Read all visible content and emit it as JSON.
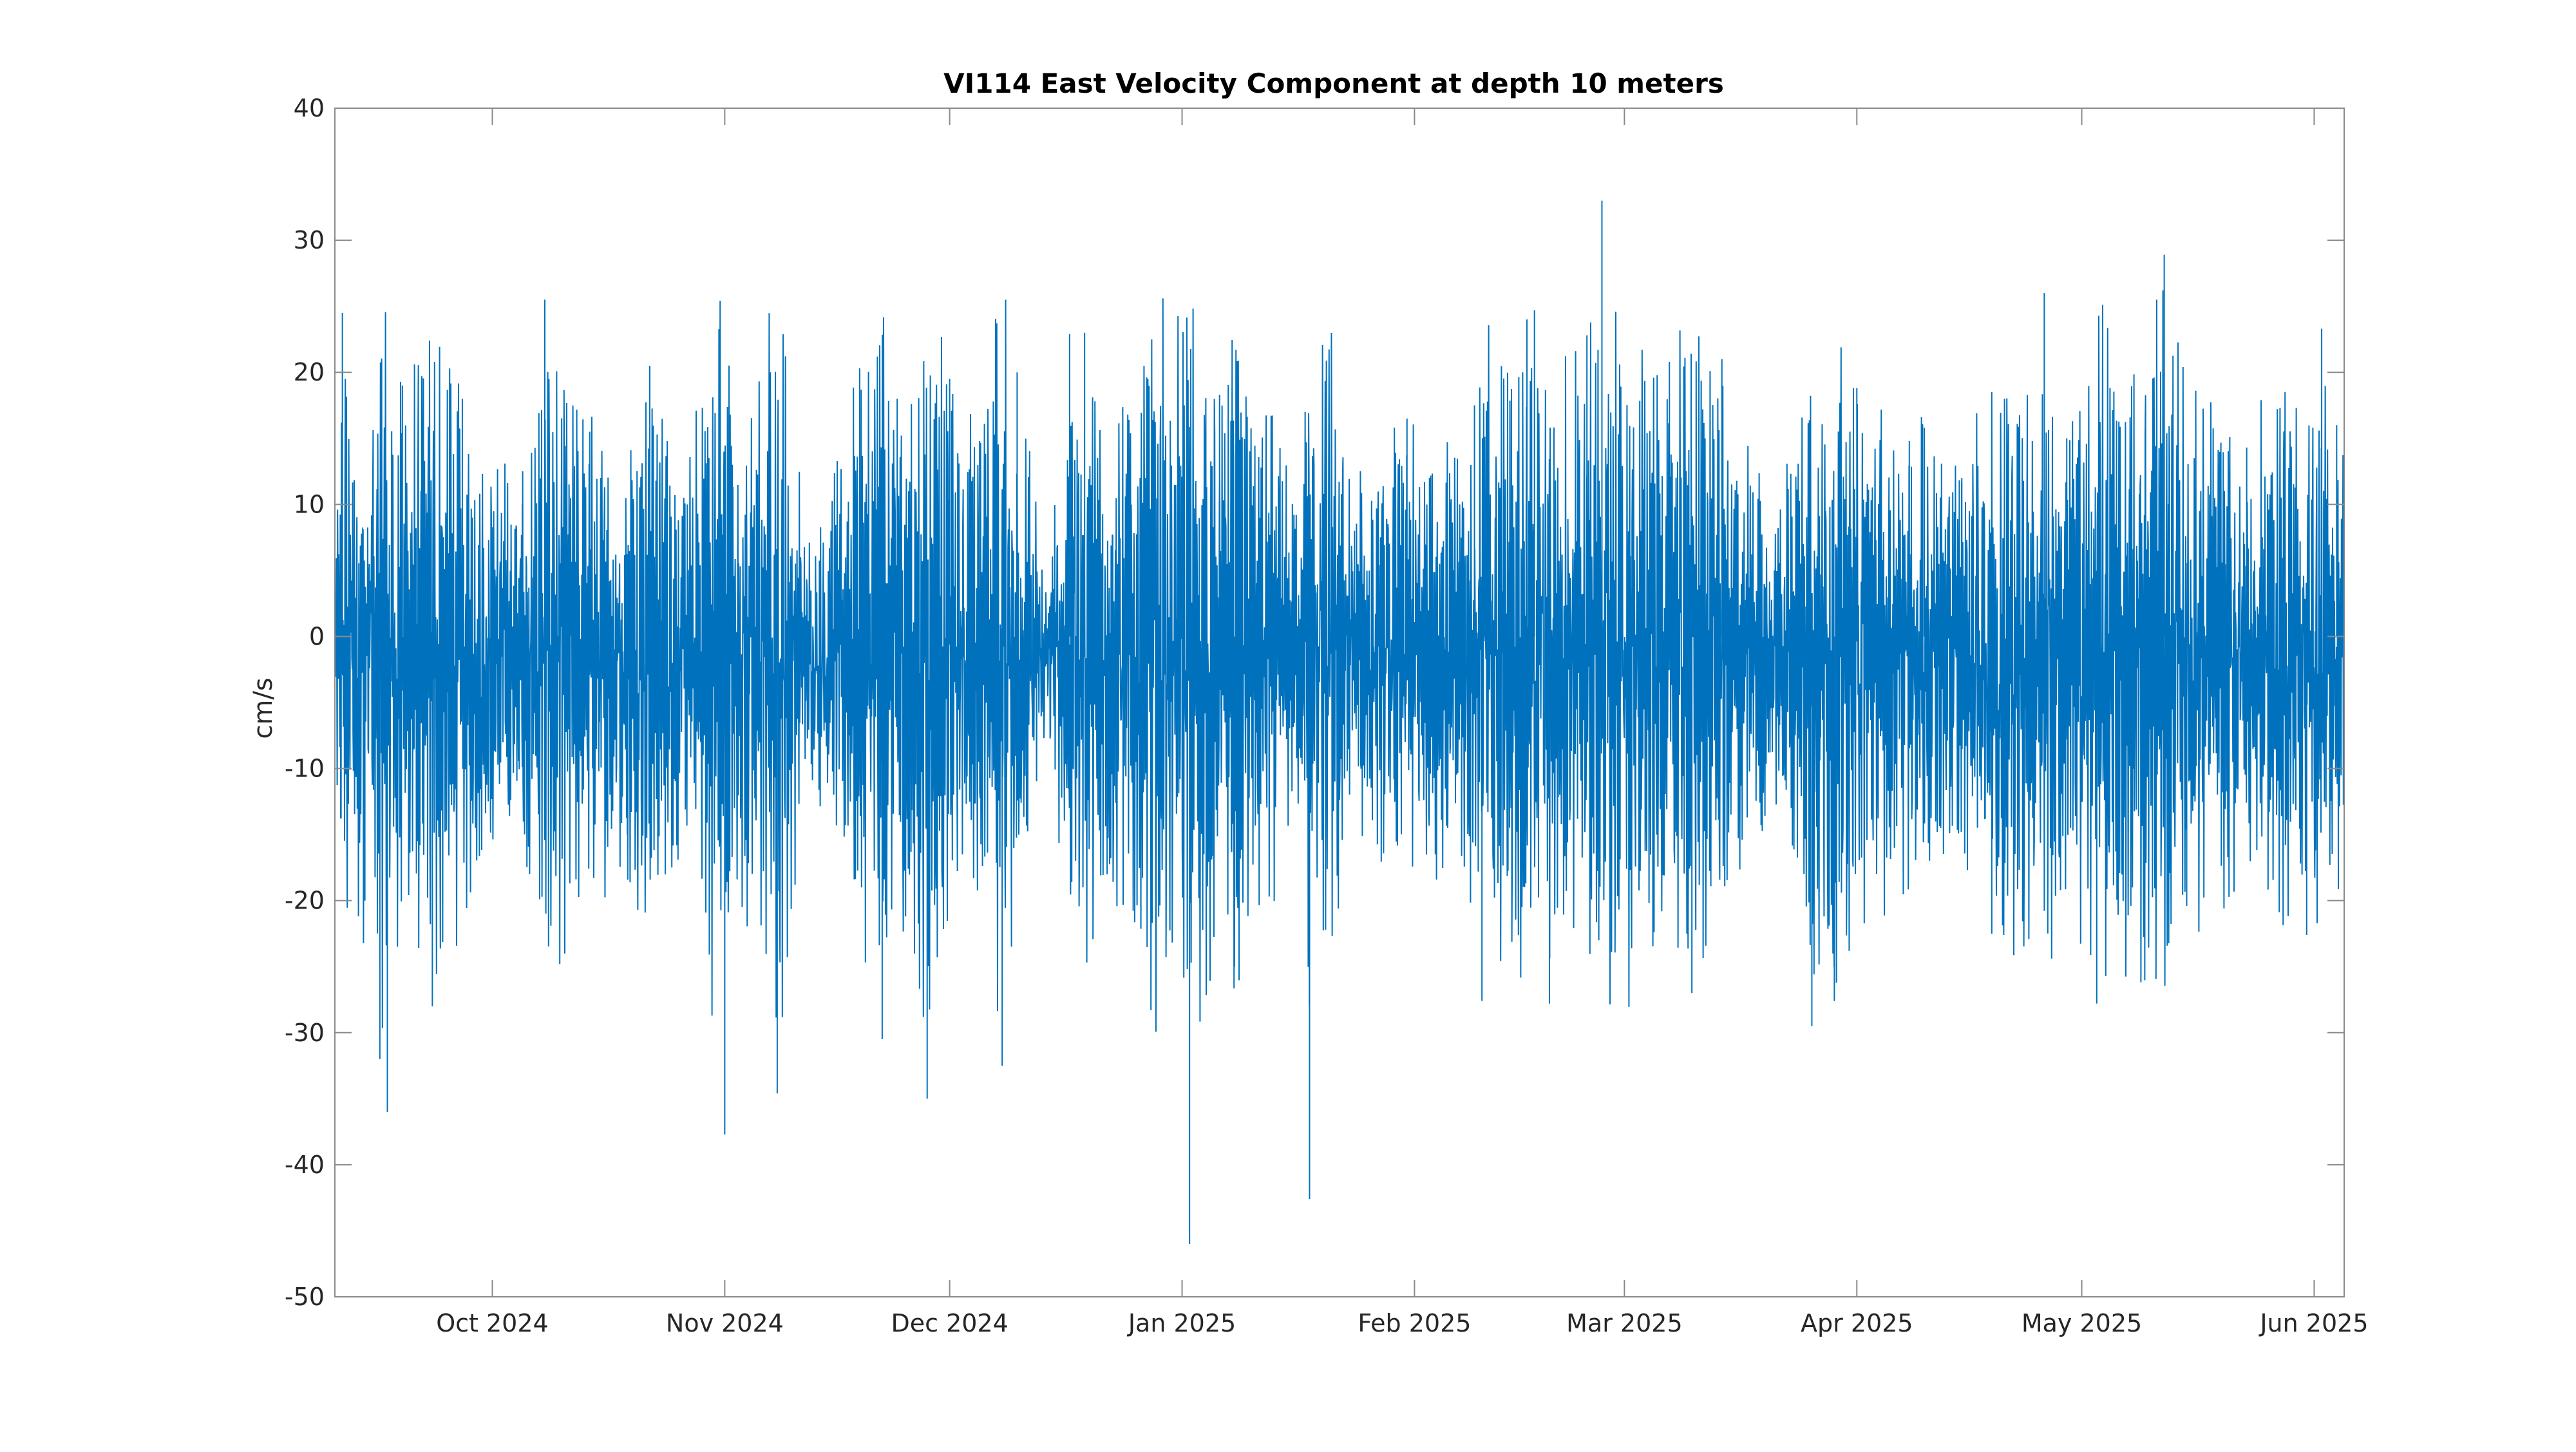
{
  "chart_data": {
    "type": "line",
    "title": "VI114 East Velocity Component at depth 10 meters",
    "xlabel": "",
    "ylabel": "cm/s",
    "ylim": [
      -50,
      40
    ],
    "yticks": [
      40,
      30,
      20,
      10,
      0,
      -10,
      -20,
      -30,
      -40,
      -50
    ],
    "ytick_labels": [
      "40",
      "30",
      "20",
      "10",
      "0",
      "-10",
      "-20",
      "-30",
      "-40",
      "-50"
    ],
    "xlim": [
      "2024-09-10",
      "2025-06-05"
    ],
    "xticks": [
      "2024-10-01",
      "2024-11-01",
      "2024-12-01",
      "2025-01-01",
      "2025-02-01",
      "2025-03-01",
      "2025-04-01",
      "2025-05-01",
      "2025-06-01"
    ],
    "xtick_labels": [
      "Oct 2024",
      "Nov 2024",
      "Dec 2024",
      "Jan 2025",
      "Feb 2025",
      "Mar 2025",
      "Apr 2025",
      "May 2025",
      "Jun 2025"
    ],
    "grid": false,
    "legend": "none",
    "series": [
      {
        "color": "#0072BD",
        "x": [
          "2024-09-10",
          "2024-09-11",
          "2024-09-14",
          "2024-09-16",
          "2024-09-17",
          "2024-09-19",
          "2024-09-23",
          "2024-09-27",
          "2024-10-05",
          "2024-10-08",
          "2024-10-14",
          "2024-10-19",
          "2024-10-22",
          "2024-10-27",
          "2024-11-01",
          "2024-11-02",
          "2024-11-08",
          "2024-11-12",
          "2024-11-19",
          "2024-11-22",
          "2024-11-24",
          "2024-11-28",
          "2024-12-01",
          "2024-12-05",
          "2024-12-08",
          "2024-12-10",
          "2024-12-14",
          "2024-12-17",
          "2024-12-19",
          "2024-12-22",
          "2025-01-02",
          "2025-01-06",
          "2025-01-08",
          "2025-01-13",
          "2025-01-17",
          "2025-01-18",
          "2025-01-24",
          "2025-01-31",
          "2025-02-03",
          "2025-02-09",
          "2025-02-10",
          "2025-02-16",
          "2025-02-17",
          "2025-02-19",
          "2025-02-24",
          "2025-02-26",
          "2025-03-07",
          "2025-03-10",
          "2025-03-14",
          "2025-03-21",
          "2025-03-26",
          "2025-03-29",
          "2025-04-01",
          "2025-04-08",
          "2025-04-10",
          "2025-04-15",
          "2025-04-19",
          "2025-04-26",
          "2025-04-29",
          "2025-05-03",
          "2025-05-11",
          "2025-05-12",
          "2025-05-15",
          "2025-05-23",
          "2025-05-31",
          "2025-06-02",
          "2025-06-04"
        ],
        "y": [
          0,
          24.5,
          -20,
          -32,
          -36,
          19,
          -28,
          18,
          10,
          25.5,
          15.5,
          -15,
          20.5,
          10,
          -37.7,
          13,
          -34.6,
          2,
          20.3,
          -30.5,
          18,
          -35,
          19.5,
          14.8,
          -32.5,
          20,
          0,
          22.9,
          23,
          -18,
          -46,
          18.3,
          -25,
          16,
          5,
          -42.6,
          8,
          16.5,
          12,
          17.5,
          -27.6,
          24,
          24.7,
          -27.8,
          22.8,
          33,
          20.8,
          -27,
          21,
          5,
          -29.5,
          -27.6,
          18.8,
          14.8,
          15.8,
          12,
          -22.5,
          26,
          15,
          -27.8,
          25.5,
          28.9,
          -20.4,
          14.3,
          -22.6,
          23.3,
          16
        ]
      }
    ]
  }
}
